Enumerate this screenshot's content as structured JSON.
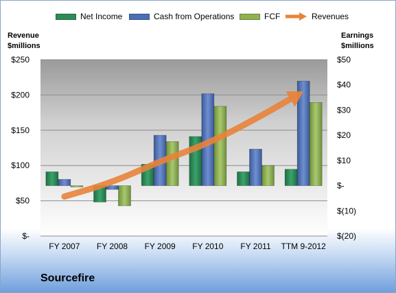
{
  "legend": {
    "net_income": "Net Income",
    "cfo": "Cash from Operations",
    "fcf": "FCF",
    "revenues": "Revenues"
  },
  "axis": {
    "left_title_1": "Revenue",
    "left_title_2": "$millions",
    "right_title_1": "Earnings",
    "right_title_2": "$millions"
  },
  "company": "Sourcefire",
  "colors": {
    "net_income": "#2e8b57",
    "cfo": "#4a6fb5",
    "fcf": "#8fb151",
    "revenues": "#e8833a"
  },
  "chart_data": {
    "type": "bar",
    "categories": [
      "FY 2007",
      "FY 2008",
      "FY 2009",
      "FY 2010",
      "FY 2011",
      "TTM 9-2012"
    ],
    "series": [
      {
        "name": "Net Income",
        "axis": "right",
        "type": "bar",
        "values": [
          5.5,
          -6.5,
          8.5,
          19.5,
          5.5,
          6.5
        ]
      },
      {
        "name": "Cash from Operations",
        "axis": "right",
        "type": "bar",
        "values": [
          2.5,
          -1.5,
          20,
          36.5,
          14.5,
          41.5
        ]
      },
      {
        "name": "FCF",
        "axis": "right",
        "type": "bar",
        "values": [
          -0.5,
          -8,
          17.5,
          31.5,
          8,
          33
        ]
      },
      {
        "name": "Revenues",
        "axis": "left",
        "type": "line",
        "values": [
          56,
          76,
          106,
          131,
          166,
          205
        ]
      }
    ],
    "left_axis": {
      "title": "Revenue $millions",
      "ylim": [
        0,
        250
      ],
      "ticks": [
        "$-",
        "$50",
        "$100",
        "$150",
        "$200",
        "$250"
      ]
    },
    "right_axis": {
      "title": "Earnings $millions",
      "ylim": [
        -20,
        50
      ],
      "ticks": [
        "$(20)",
        "$(10)",
        "$-",
        "$10",
        "$20",
        "$30",
        "$40",
        "$50"
      ]
    },
    "legend_position": "top",
    "grid": true
  }
}
